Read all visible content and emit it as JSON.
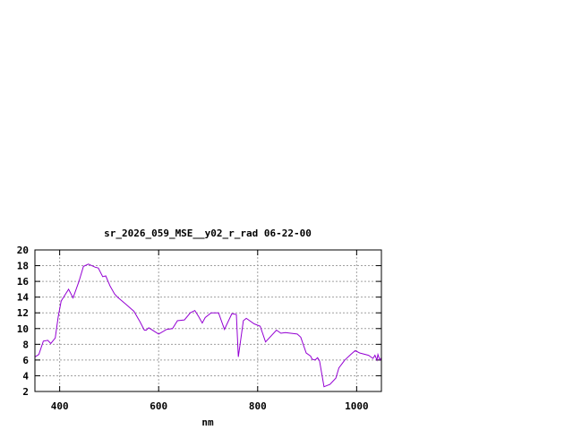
{
  "chart_data": {
    "type": "line",
    "title": "sr_2026_059_MSE__y02_r_rad 06-22-00",
    "xlabel": "nm",
    "ylabel": "",
    "xlim": [
      350,
      1050
    ],
    "ylim": [
      2,
      20
    ],
    "xticks": [
      400,
      600,
      800,
      1000
    ],
    "yticks": [
      2,
      4,
      6,
      8,
      10,
      12,
      14,
      16,
      18,
      20
    ],
    "grid": true,
    "line_color": "#9400d3",
    "series": [
      {
        "x": [
          350,
          358,
          367,
          376,
          382,
          391,
          397,
          403,
          418,
          427,
          439,
          448,
          458,
          472,
          478,
          487,
          493,
          502,
          511,
          517,
          532,
          550,
          562,
          571,
          575,
          580,
          600,
          616,
          628,
          638,
          652,
          664,
          673,
          681,
          688,
          694,
          706,
          711,
          721,
          733,
          748,
          757,
          761,
          771,
          777,
          793,
          805,
          816,
          838,
          847,
          856,
          880,
          887,
          898,
          907,
          910,
          916,
          921,
          925,
          934,
          946,
          958,
          964,
          976,
          988,
          997,
          1006,
          1024,
          1033,
          1037,
          1041,
          1043,
          1047,
          1050
        ],
        "y": [
          6.4,
          6.7,
          8.4,
          8.5,
          8.1,
          8.8,
          11.5,
          13.5,
          15.0,
          13.9,
          16.0,
          17.9,
          18.2,
          17.8,
          17.7,
          16.6,
          16.7,
          15.4,
          14.4,
          14.0,
          13.2,
          12.2,
          10.9,
          9.8,
          9.8,
          10.1,
          9.3,
          9.9,
          10.0,
          11.0,
          11.1,
          12.0,
          12.3,
          11.5,
          10.7,
          11.4,
          12.0,
          12.0,
          12.0,
          9.9,
          11.9,
          11.8,
          6.4,
          11.0,
          11.3,
          10.6,
          10.3,
          8.3,
          9.8,
          9.4,
          9.5,
          9.3,
          8.9,
          6.9,
          6.5,
          6.1,
          6.0,
          6.3,
          5.9,
          2.6,
          2.9,
          3.7,
          5.0,
          6.0,
          6.7,
          7.2,
          6.9,
          6.6,
          6.2,
          6.6,
          6.0,
          6.7,
          6.0,
          6.3
        ]
      }
    ]
  }
}
